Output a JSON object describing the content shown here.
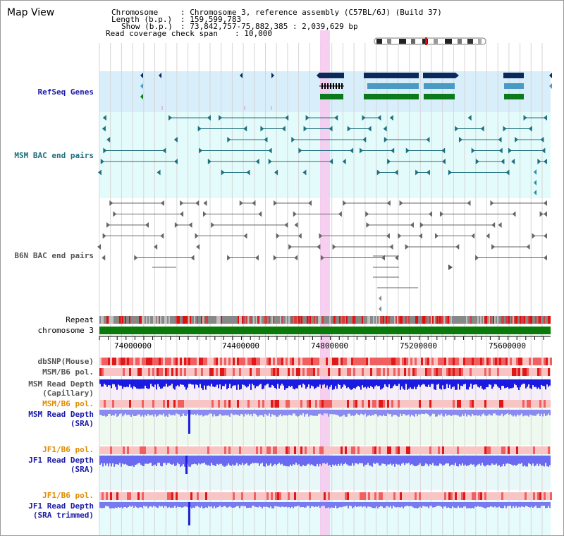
{
  "title": "Map View",
  "info": {
    "chromosome_label": "Chromosome",
    "chromosome_value": ": Chromosome 3, reference assembly (C57BL/6J) (Build 37)",
    "length_label": "Length (b.p.)",
    "length_value": ": 159,599,783",
    "show_label": "Show (b.p.)",
    "show_value": ": 73,842,757-75,882,385 : 2,039,629 bp",
    "coverage_label": "Read coverage check span",
    "coverage_value": ": 10,000"
  },
  "tracks": {
    "refseq": "RefSeq Genes",
    "msm_bac": "MSM BAC end pairs",
    "b6n_bac": "B6N BAC end pairs",
    "repeat": "Repeat",
    "chromosome": "chromosome 3",
    "dbsnp": "dbSNP(Mouse)",
    "msm_pol": "MSM/B6 pol.",
    "msm_depth_cap_1": "MSM Read Depth",
    "msm_depth_cap_2": "(Capillary)",
    "msm_pol2": "MSM/B6 pol.",
    "msm_depth_sra_1": "MSM Read Depth",
    "msm_depth_sra_2": "(SRA)",
    "jf1_pol": "JF1/B6 pol.",
    "jf1_depth_1": "JF1 Read Depth",
    "jf1_depth_2": "(SRA)",
    "jf1_pol2": "JF1/B6 pol.",
    "jf1_trim_1": "JF1 Read Depth",
    "jf1_trim_2": "(SRA trimmed)"
  },
  "axis_ticks": [
    "74000000",
    "74400000",
    "74800000",
    "75200000",
    "75600000"
  ],
  "colors": {
    "refseq_bg": "#d8eefa",
    "bac_bg": "#e4fbfb",
    "highlight": "#f6c8ee",
    "gene_dark": "#0a2a5c",
    "gene_mid": "#4a9ac4",
    "gene_green": "#0a7a1a",
    "chromosome_bar": "#0a7a0a"
  }
}
